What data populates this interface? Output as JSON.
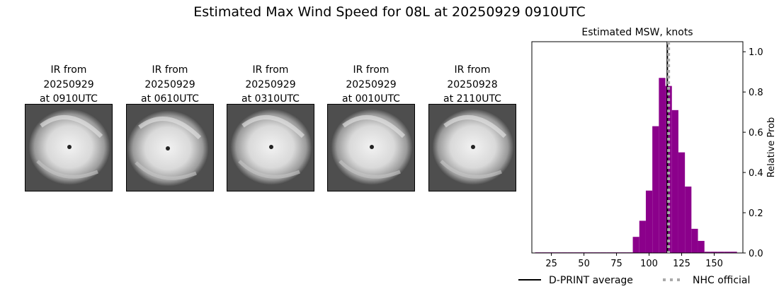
{
  "suptitle": "Estimated Max Wind Speed for 08L at 20250929 0910UTC",
  "ir_panels": [
    {
      "line1": "IR from",
      "line2": "20250929",
      "line3": "at 0910UTC",
      "icon": "satellite-ir-image"
    },
    {
      "line1": "IR from",
      "line2": "20250929",
      "line3": "at 0610UTC",
      "icon": "satellite-ir-image"
    },
    {
      "line1": "IR from",
      "line2": "20250929",
      "line3": "at 0310UTC",
      "icon": "satellite-ir-image"
    },
    {
      "line1": "IR from",
      "line2": "20250929",
      "line3": "at 0010UTC",
      "icon": "satellite-ir-image"
    },
    {
      "line1": "IR from",
      "line2": "20250928",
      "line3": "at 2110UTC",
      "icon": "satellite-ir-image"
    }
  ],
  "chart_data": {
    "type": "bar",
    "title": "Estimated MSW, knots",
    "xlabel": "",
    "ylabel": "Relative Prob",
    "xlim": [
      10,
      172
    ],
    "ylim": [
      0,
      1.05
    ],
    "xticks": [
      25,
      50,
      75,
      100,
      125,
      150
    ],
    "yticks": [
      0.0,
      0.2,
      0.4,
      0.6,
      0.8,
      1.0
    ],
    "y_axis_side": "right",
    "bar_color": "#8b008b",
    "bin_width": 5,
    "bins": [
      {
        "x": 15,
        "value": 0.003
      },
      {
        "x": 20,
        "value": 0.003
      },
      {
        "x": 25,
        "value": 0.003
      },
      {
        "x": 30,
        "value": 0.003
      },
      {
        "x": 35,
        "value": 0.003
      },
      {
        "x": 40,
        "value": 0.003
      },
      {
        "x": 45,
        "value": 0.003
      },
      {
        "x": 50,
        "value": 0.003
      },
      {
        "x": 55,
        "value": 0.003
      },
      {
        "x": 60,
        "value": 0.003
      },
      {
        "x": 65,
        "value": 0.003
      },
      {
        "x": 70,
        "value": 0.003
      },
      {
        "x": 75,
        "value": 0.003
      },
      {
        "x": 80,
        "value": 0.003
      },
      {
        "x": 85,
        "value": 0.003
      },
      {
        "x": 90,
        "value": 0.08
      },
      {
        "x": 95,
        "value": 0.16
      },
      {
        "x": 100,
        "value": 0.31
      },
      {
        "x": 105,
        "value": 0.63
      },
      {
        "x": 110,
        "value": 0.87
      },
      {
        "x": 115,
        "value": 0.83
      },
      {
        "x": 120,
        "value": 0.71
      },
      {
        "x": 125,
        "value": 0.5
      },
      {
        "x": 130,
        "value": 0.33
      },
      {
        "x": 135,
        "value": 0.12
      },
      {
        "x": 140,
        "value": 0.06
      },
      {
        "x": 145,
        "value": 0.006
      },
      {
        "x": 150,
        "value": 0.006
      },
      {
        "x": 155,
        "value": 0.006
      },
      {
        "x": 160,
        "value": 0.006
      },
      {
        "x": 165,
        "value": 0.006
      }
    ],
    "dprint_average": 114,
    "nhc_official": 115,
    "legend": [
      {
        "label": "D-PRINT average",
        "style": "solid",
        "color": "#000000"
      },
      {
        "label": "NHC official",
        "style": "dotted",
        "color": "#aaaaaa"
      }
    ],
    "legend_position": "bottom"
  }
}
